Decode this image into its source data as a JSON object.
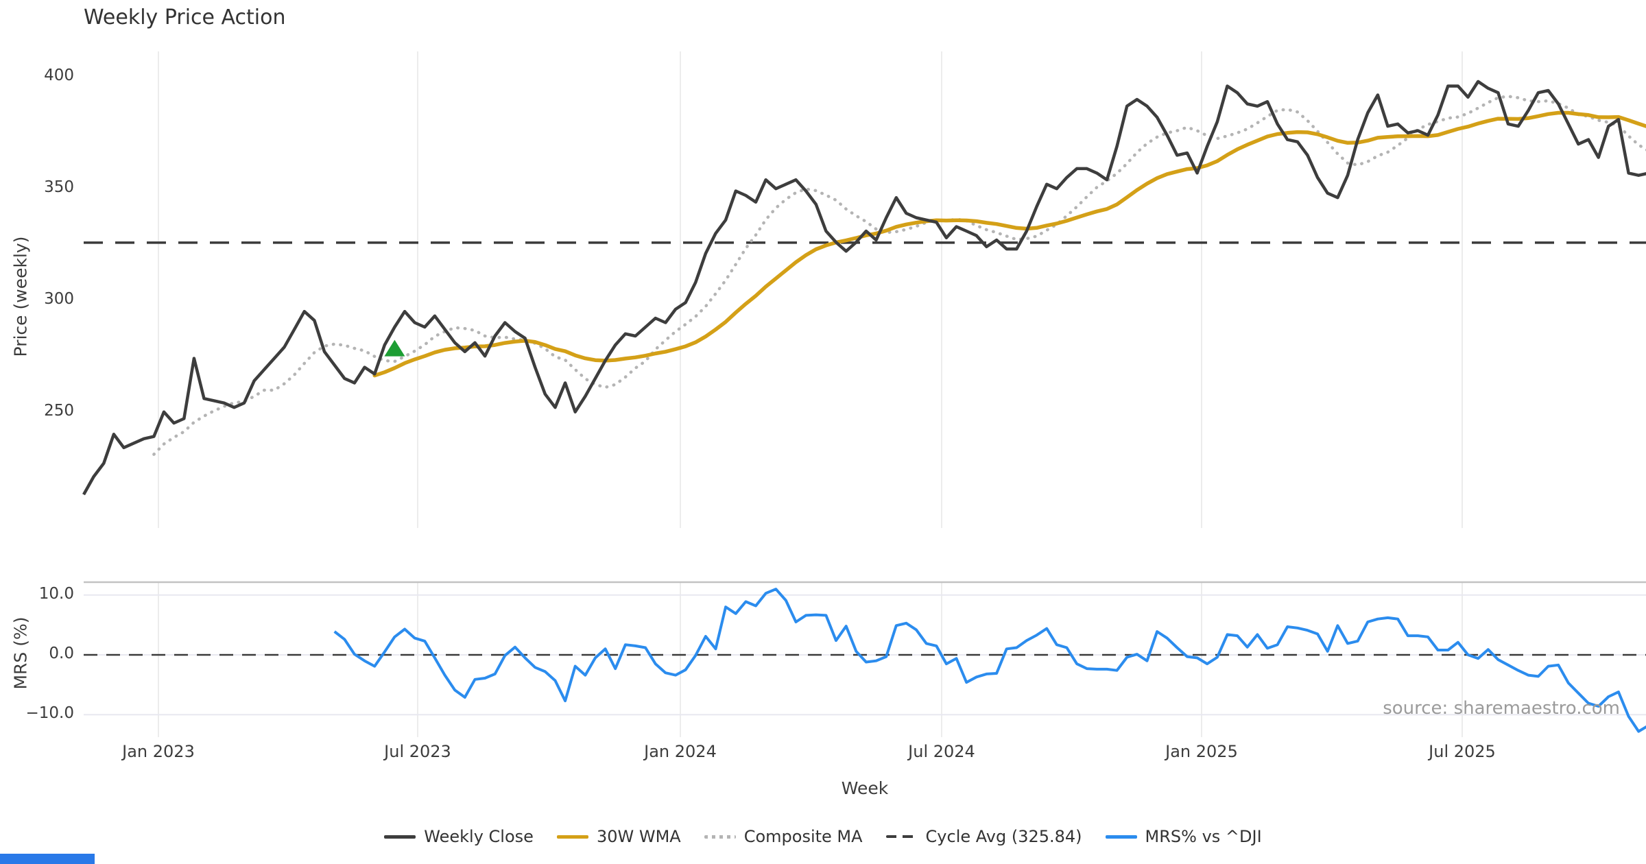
{
  "title": "Weekly Price Action",
  "source_text": "source: sharemaestro.com",
  "colors": {
    "close": "#3d3d3d",
    "wma": "#d4a017",
    "composite": "#b4b4b4",
    "cycle_avg": "#3a3a3a",
    "mrs": "#2b8cee",
    "marker_green": "#1d9e34",
    "grid": "#ececec",
    "mrs_grid": "#e8e8f0",
    "mrs_top_spine": "#c2c2c2",
    "blue_strip": "#2979e8"
  },
  "legend": [
    {
      "label": "Weekly Close",
      "color": "#3d3d3d",
      "style": "solid"
    },
    {
      "label": "30W WMA",
      "color": "#d4a017",
      "style": "solid"
    },
    {
      "label": "Composite MA",
      "color": "#b4b4b4",
      "style": "dotted"
    },
    {
      "label": "Cycle Avg (325.84)",
      "color": "#3d3d3d",
      "style": "dashed"
    },
    {
      "label": "MRS% vs ^DJI",
      "color": "#2b8cee",
      "style": "solid"
    }
  ],
  "chart_data": [
    {
      "type": "line",
      "title": "Weekly Price Action",
      "xlabel": "Week",
      "ylabel": "Price (weekly)",
      "ylim": [
        198,
        411.5
      ],
      "yticks": [
        {
          "label": "400",
          "value": 400
        },
        {
          "label": "350",
          "value": 350
        },
        {
          "label": "300",
          "value": 300
        },
        {
          "label": "250",
          "value": 250
        }
      ],
      "xticks": [
        "Jan 2023",
        "Jul 2023",
        "Jan 2024",
        "Jul 2024",
        "Jan 2025",
        "Jul 2025"
      ],
      "grid": "vertical-only",
      "legend_position": "bottom-center",
      "cycle_avg_value": 325.84,
      "wma_window": 30,
      "composite_sma_window": 8,
      "buy_marker": {
        "index": 31,
        "value": 278
      },
      "series": [
        {
          "name": "Weekly Close",
          "values": [
            213,
            221,
            227,
            240,
            234,
            236,
            238,
            239,
            250,
            245,
            247,
            274,
            256,
            255,
            254,
            252,
            254,
            264,
            269,
            274,
            279,
            287,
            295,
            291,
            277,
            271,
            265,
            263,
            270,
            267,
            280,
            288,
            295,
            290,
            288,
            293,
            287,
            281,
            277,
            281,
            275,
            284,
            290,
            286,
            283,
            270,
            258,
            252,
            263,
            250,
            257,
            265,
            273,
            280,
            285,
            284,
            288,
            292,
            290,
            296,
            299,
            308,
            321,
            330,
            336,
            349,
            347,
            344,
            354,
            350,
            352,
            354,
            349,
            343,
            331,
            326,
            322,
            326,
            331,
            327,
            337,
            346,
            339,
            337,
            336,
            335,
            328,
            333,
            331,
            329,
            324,
            327,
            323,
            323,
            331,
            342,
            352,
            350,
            355,
            359,
            359,
            357,
            354,
            369,
            387,
            390,
            387,
            382,
            374,
            365,
            366,
            357,
            369,
            380,
            396,
            393,
            388,
            387,
            389,
            379,
            372,
            371,
            365,
            355,
            348,
            346,
            356,
            372,
            384,
            392,
            378,
            379,
            375,
            376,
            374,
            383,
            396,
            396,
            391,
            398,
            395,
            393,
            379,
            378,
            385,
            393,
            394,
            388,
            379,
            370,
            372,
            364,
            378,
            381,
            357,
            356,
            357
          ]
        },
        {
          "name": "30W WMA",
          "derived_from": "Weekly Close",
          "method": "weighted-moving-average-30w"
        },
        {
          "name": "Composite MA",
          "derived_from": "Weekly Close",
          "method": "sma-8"
        },
        {
          "name": "Cycle Avg (325.84)",
          "constant": 325.84
        }
      ]
    },
    {
      "type": "line",
      "ylabel": "MRS (%)",
      "ylim": [
        -13.8,
        12.1
      ],
      "yticks": [
        {
          "label": "10.0",
          "value": 10
        },
        {
          "label": "0.0",
          "value": 0
        },
        {
          "label": "−10.0",
          "value": -10
        }
      ],
      "zero_dashed_line": 0,
      "grid": "both-light",
      "series": [
        {
          "name": "MRS% vs ^DJI",
          "start_index": 25,
          "values": [
            3.9,
            2.6,
            0.1,
            -1.0,
            -1.9,
            0.5,
            3.0,
            4.3,
            2.8,
            2.3,
            -0.5,
            -3.4,
            -5.9,
            -7.1,
            -4.1,
            -3.9,
            -3.2,
            -0.1,
            1.3,
            -0.5,
            -2.1,
            -2.8,
            -4.3,
            -7.7,
            -1.9,
            -3.4,
            -0.5,
            1.0,
            -2.3,
            1.7,
            1.5,
            1.2,
            -1.5,
            -3.0,
            -3.4,
            -2.5,
            -0.1,
            3.1,
            1.0,
            8.0,
            6.9,
            8.9,
            8.2,
            10.3,
            11.0,
            9.1,
            5.5,
            6.6,
            6.7,
            6.6,
            2.4,
            4.8,
            0.6,
            -1.2,
            -1.0,
            -0.3,
            4.9,
            5.3,
            4.2,
            1.9,
            1.5,
            -1.5,
            -0.6,
            -4.6,
            -3.7,
            -3.2,
            -3.1,
            1.0,
            1.2,
            2.4,
            3.3,
            4.4,
            1.7,
            1.2,
            -1.5,
            -2.3,
            -2.4,
            -2.4,
            -2.6,
            -0.4,
            0.1,
            -1.0,
            3.9,
            2.8,
            1.2,
            -0.3,
            -0.5,
            -1.5,
            -0.4,
            3.4,
            3.2,
            1.3,
            3.4,
            1.1,
            1.7,
            4.7,
            4.5,
            4.1,
            3.5,
            0.6,
            4.9,
            1.9,
            2.3,
            5.5,
            6.0,
            6.2,
            6.0,
            3.2,
            3.2,
            3.0,
            0.8,
            0.8,
            2.1,
            0.0,
            -0.6,
            0.9,
            -0.8,
            -1.7,
            -2.6,
            -3.4,
            -3.6,
            -1.9,
            -1.7,
            -4.7,
            -6.4,
            -8.1,
            -8.6,
            -7.0,
            -6.2,
            -10.3,
            -12.8,
            -11.8
          ]
        }
      ]
    }
  ]
}
